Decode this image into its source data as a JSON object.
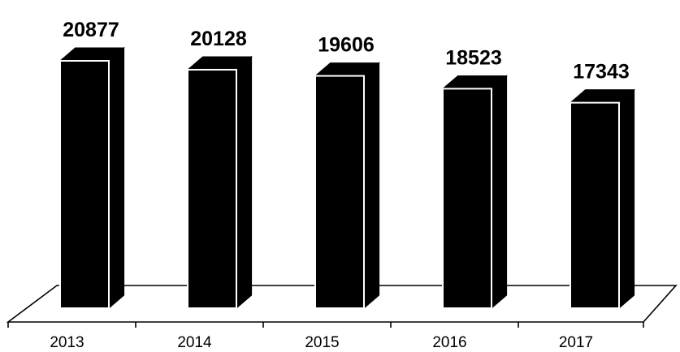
{
  "chart_data": {
    "type": "bar",
    "style": "3d-column",
    "categories": [
      "2013",
      "2014",
      "2015",
      "2016",
      "2017"
    ],
    "values": [
      20877,
      20128,
      19606,
      18523,
      17343
    ],
    "value_labels": [
      "20877",
      "20128",
      "19606",
      "18523",
      "17343"
    ],
    "title": "",
    "xlabel": "",
    "ylabel": "",
    "grid": false,
    "legend": "none",
    "colors": {
      "bar": "#000000",
      "bar_edge": "#ffffff",
      "floor_line": "#000000",
      "background": "#ffffff"
    }
  }
}
